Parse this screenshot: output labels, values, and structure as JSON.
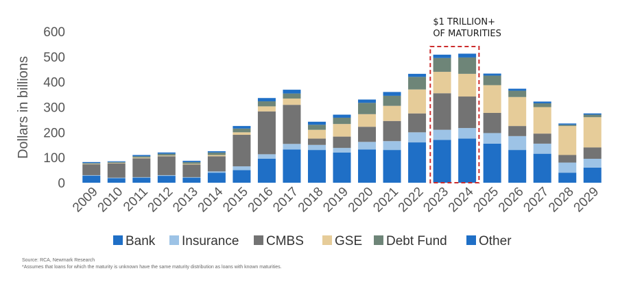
{
  "chart_data": {
    "type": "bar",
    "stacked": true,
    "ylabel": "Dollars in billions",
    "ylim": [
      0,
      600
    ],
    "yticks": [
      0,
      100,
      200,
      300,
      400,
      500,
      600
    ],
    "grid": false,
    "legend_position": "bottom",
    "categories": [
      "2009",
      "2010",
      "2011",
      "2012",
      "2013",
      "2014",
      "2015",
      "2016",
      "2017",
      "2018",
      "2019",
      "2020",
      "2021",
      "2022",
      "2023",
      "2024",
      "2025",
      "2026",
      "2027",
      "2028",
      "2029"
    ],
    "series": [
      {
        "name": "Bank",
        "color": "#1f6fc6",
        "values": [
          28,
          18,
          20,
          27,
          20,
          40,
          50,
          95,
          132,
          130,
          120,
          132,
          130,
          160,
          170,
          175,
          155,
          130,
          115,
          40,
          60
        ]
      },
      {
        "name": "Insurance",
        "color": "#9dc3e6",
        "values": [
          2,
          2,
          2,
          3,
          2,
          5,
          15,
          18,
          22,
          20,
          18,
          30,
          35,
          40,
          40,
          42,
          42,
          55,
          40,
          40,
          35
        ]
      },
      {
        "name": "CMBS",
        "color": "#737373",
        "values": [
          43,
          57,
          75,
          75,
          50,
          60,
          125,
          170,
          155,
          25,
          45,
          60,
          80,
          75,
          145,
          125,
          80,
          40,
          40,
          30,
          45
        ]
      },
      {
        "name": "GSE",
        "color": "#e6cc99",
        "values": [
          2,
          2,
          3,
          3,
          3,
          5,
          10,
          20,
          25,
          35,
          50,
          50,
          60,
          95,
          85,
          90,
          110,
          115,
          105,
          115,
          120
        ]
      },
      {
        "name": "Debt Fund",
        "color": "#6e8578",
        "values": [
          3,
          3,
          5,
          7,
          7,
          10,
          15,
          20,
          20,
          20,
          25,
          45,
          40,
          50,
          55,
          65,
          38,
          25,
          15,
          5,
          10
        ]
      },
      {
        "name": "Other",
        "color": "#1f6fc6",
        "values": [
          4,
          3,
          5,
          5,
          5,
          5,
          10,
          13,
          15,
          12,
          12,
          13,
          15,
          12,
          13,
          15,
          8,
          8,
          7,
          5,
          5
        ]
      }
    ],
    "annotation": {
      "lines": [
        "$1 TRILLION+",
        "OF MATURITIES"
      ],
      "highlight": [
        "2023",
        "2024"
      ],
      "color": "#cc2b2b"
    }
  },
  "footnotes": {
    "source": "Source: RCA, Newmark Research",
    "note": "*Assumes that loans for which the maturity is unknown have the same maturity distribution as loans with known maturities."
  }
}
